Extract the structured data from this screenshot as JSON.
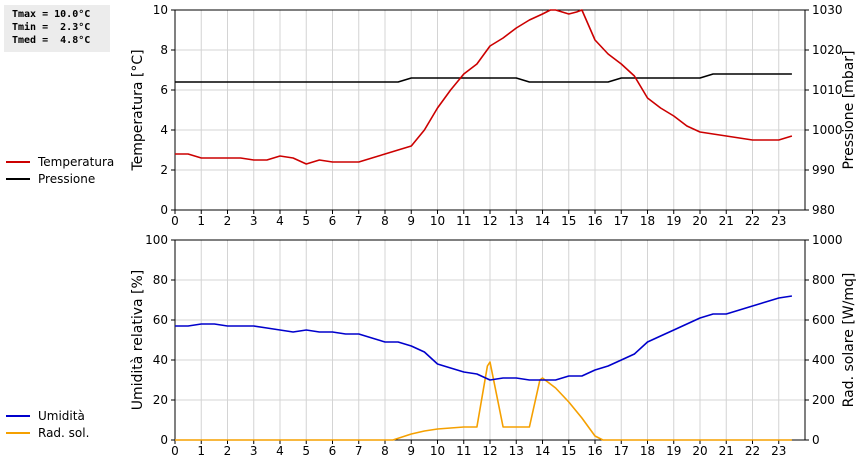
{
  "stats": {
    "tmax": "Tmax = 10.0°C",
    "tmin": "Tmin =  2.3°C",
    "tmed": "Tmed =  4.8°C"
  },
  "chart_data": [
    {
      "type": "line",
      "xlim": [
        0,
        24
      ],
      "xticks": [
        0,
        1,
        2,
        3,
        4,
        5,
        6,
        7,
        8,
        9,
        10,
        11,
        12,
        13,
        14,
        15,
        16,
        17,
        18,
        19,
        20,
        21,
        22,
        23
      ],
      "left_axis": {
        "label": "Temperatura [°C]",
        "ylim": [
          0,
          10
        ],
        "ticks": [
          0,
          2,
          4,
          6,
          8,
          10
        ]
      },
      "right_axis": {
        "label": "Pressione [mbar]",
        "ylim": [
          980,
          1030
        ],
        "ticks": [
          980,
          990,
          1000,
          1010,
          1020,
          1030
        ]
      },
      "grid": true,
      "legend_placement": "left",
      "series": [
        {
          "name": "Temperatura",
          "color": "#cc0000",
          "axis": "left",
          "x": [
            0,
            0.5,
            1,
            1.5,
            2,
            2.5,
            3,
            3.5,
            4,
            4.5,
            5,
            5.5,
            6,
            6.5,
            7,
            7.5,
            8,
            8.5,
            9,
            9.5,
            10,
            10.5,
            11,
            11.5,
            12,
            12.5,
            13,
            13.5,
            14,
            14.3,
            14.5,
            15,
            15.3,
            15.5,
            16,
            16.5,
            17,
            17.5,
            18,
            18.5,
            19,
            19.5,
            20,
            20.5,
            21,
            21.5,
            22,
            22.5,
            23,
            23.5
          ],
          "y": [
            2.8,
            2.8,
            2.6,
            2.6,
            2.6,
            2.6,
            2.5,
            2.5,
            2.7,
            2.6,
            2.3,
            2.5,
            2.4,
            2.4,
            2.4,
            2.6,
            2.8,
            3.0,
            3.2,
            4.0,
            5.1,
            6.0,
            6.8,
            7.3,
            8.2,
            8.6,
            9.1,
            9.5,
            9.8,
            10.0,
            10.0,
            9.8,
            9.9,
            10.0,
            8.5,
            7.8,
            7.3,
            6.7,
            5.6,
            5.1,
            4.7,
            4.2,
            3.9,
            3.8,
            3.7,
            3.6,
            3.5,
            3.5,
            3.5,
            3.7
          ]
        },
        {
          "name": "Pressione",
          "color": "#000000",
          "axis": "right",
          "x": [
            0,
            8.5,
            9,
            10,
            11,
            12,
            13,
            13.5,
            14,
            15,
            16,
            16.5,
            17,
            18,
            19,
            20,
            20.5,
            21,
            22,
            23,
            23.5
          ],
          "y": [
            1012,
            1012,
            1013,
            1013,
            1013,
            1013,
            1013,
            1012,
            1012,
            1012,
            1012,
            1012,
            1013,
            1013,
            1013,
            1013,
            1014,
            1014,
            1014,
            1014,
            1014
          ]
        }
      ]
    },
    {
      "type": "line",
      "xlim": [
        0,
        24
      ],
      "xticks": [
        0,
        1,
        2,
        3,
        4,
        5,
        6,
        7,
        8,
        9,
        10,
        11,
        12,
        13,
        14,
        15,
        16,
        17,
        18,
        19,
        20,
        21,
        22,
        23
      ],
      "left_axis": {
        "label": "Umidità relativa [%]",
        "ylim": [
          0,
          100
        ],
        "ticks": [
          0,
          20,
          40,
          60,
          80,
          100
        ]
      },
      "right_axis": {
        "label": "Rad. solare [W/mq]",
        "ylim": [
          0,
          1000
        ],
        "ticks": [
          0,
          200,
          400,
          600,
          800,
          1000
        ]
      },
      "grid": true,
      "legend_placement": "left",
      "series": [
        {
          "name": "Umidità",
          "color": "#0000cc",
          "axis": "left",
          "x": [
            0,
            0.5,
            1,
            1.5,
            2,
            2.5,
            3,
            3.5,
            4,
            4.5,
            5,
            5.5,
            6,
            6.5,
            7,
            7.5,
            8,
            8.5,
            9,
            9.5,
            10,
            10.5,
            11,
            11.5,
            12,
            12.5,
            13,
            13.5,
            14,
            14.5,
            15,
            15.5,
            16,
            16.5,
            17,
            17.5,
            18,
            18.5,
            19,
            19.5,
            20,
            20.5,
            21,
            21.5,
            22,
            22.5,
            23,
            23.5
          ],
          "y": [
            57,
            57,
            58,
            58,
            57,
            57,
            57,
            56,
            55,
            54,
            55,
            54,
            54,
            53,
            53,
            51,
            49,
            49,
            47,
            44,
            38,
            36,
            34,
            33,
            30,
            31,
            31,
            30,
            30,
            30,
            32,
            32,
            35,
            37,
            40,
            43,
            49,
            52,
            55,
            58,
            61,
            63,
            63,
            65,
            67,
            69,
            71,
            72
          ]
        },
        {
          "name": "Rad. sol.",
          "color": "#f5a000",
          "axis": "right",
          "x": [
            0,
            1,
            2,
            3,
            4,
            5,
            6,
            7,
            8,
            8.3,
            9,
            9.5,
            10,
            10.5,
            11,
            11.5,
            11.9,
            12,
            12.5,
            13,
            13.5,
            13.9,
            14,
            14.5,
            15,
            15.5,
            16,
            16.3,
            17,
            18,
            19,
            20,
            21,
            22,
            23,
            23.5
          ],
          "y": [
            0,
            0,
            0,
            0,
            0,
            0,
            0,
            0,
            0,
            0,
            30,
            45,
            55,
            60,
            65,
            65,
            370,
            390,
            65,
            65,
            65,
            300,
            310,
            260,
            190,
            110,
            20,
            0,
            0,
            0,
            0,
            0,
            0,
            0,
            0,
            0
          ]
        }
      ]
    }
  ]
}
